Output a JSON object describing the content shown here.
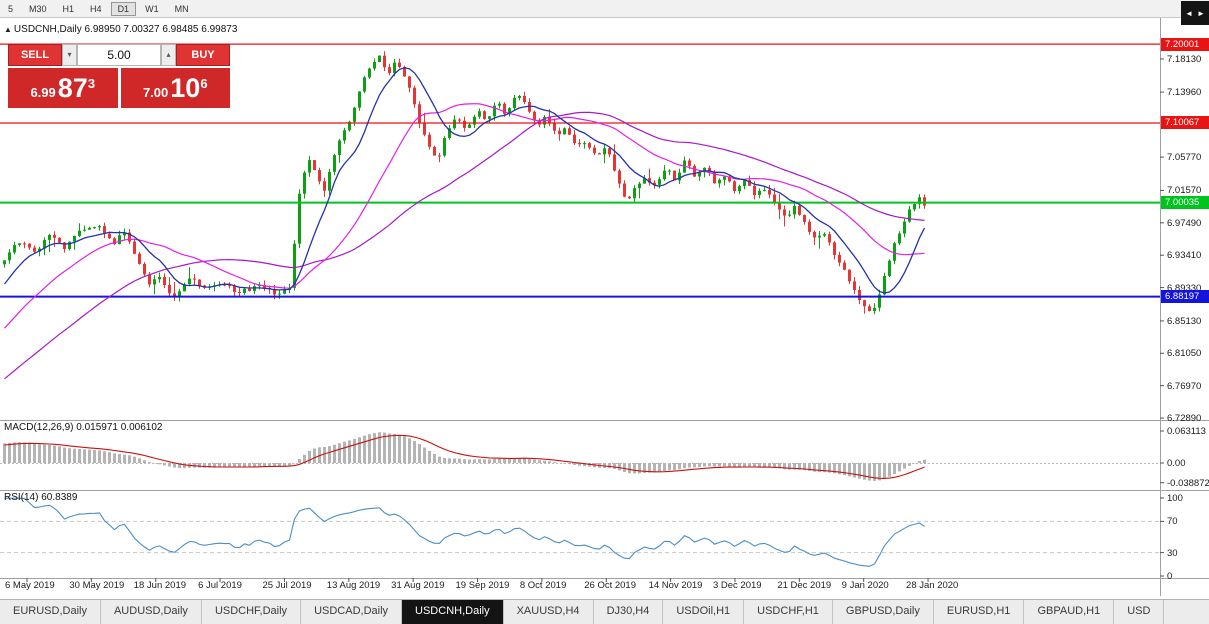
{
  "toolbar": {
    "timeframes": [
      "5",
      "M30",
      "H1",
      "H4",
      "D1",
      "W1",
      "MN"
    ],
    "active": "D1"
  },
  "chart_header": {
    "collapse_arrow": "▲",
    "title": "USDCNH,Daily 6.98950 7.00327 6.98485 6.99873"
  },
  "trade_panel": {
    "sell_label": "SELL",
    "buy_label": "BUY",
    "volume": "5.00",
    "spinner_down": "▾",
    "spinner_up": "▴",
    "sell_price": {
      "prefix": "6.99",
      "main": "87",
      "sup": "3"
    },
    "buy_price": {
      "prefix": "7.00",
      "main": "10",
      "sup": "6"
    }
  },
  "price_axis": {
    "labels": [
      {
        "text": "7.18130",
        "value": 7.1813
      },
      {
        "text": "7.13960",
        "value": 7.1396
      },
      {
        "text": "7.05770",
        "value": 7.0577
      },
      {
        "text": "7.01570",
        "value": 7.0157
      },
      {
        "text": "6.97490",
        "value": 6.9749
      },
      {
        "text": "6.93410",
        "value": 6.9341
      },
      {
        "text": "6.89330",
        "value": 6.8933
      },
      {
        "text": "6.85130",
        "value": 6.8513
      },
      {
        "text": "6.81050",
        "value": 6.8105
      },
      {
        "text": "6.76970",
        "value": 6.7697
      },
      {
        "text": "6.72890",
        "value": 6.7289
      }
    ]
  },
  "hlines": [
    {
      "text": "7.20001",
      "value": 7.20001,
      "color": "#e81414",
      "width": 1.3
    },
    {
      "text": "7.10067",
      "value": 7.10067,
      "color": "#e81414",
      "width": 1.3
    },
    {
      "text": "7.00035",
      "value": 7.00035,
      "color": "#00c41e",
      "width": 2
    },
    {
      "text": "6.88197",
      "value": 6.88197,
      "color": "#1414dc",
      "width": 2
    }
  ],
  "macd_panel": {
    "header": "MACD(12,26,9) 0.015971 0.006102",
    "axis": [
      {
        "text": "0.063113",
        "value": 0.063113
      },
      {
        "text": "0.00",
        "value": 0
      },
      {
        "text": "-0.038872",
        "value": -0.038872
      }
    ]
  },
  "rsi_panel": {
    "header": "RSI(14) 60.8389",
    "axis": [
      {
        "text": "100",
        "value": 100
      },
      {
        "text": "70",
        "value": 70
      },
      {
        "text": "30",
        "value": 30
      },
      {
        "text": "0",
        "value": 0
      }
    ],
    "levels": [
      70,
      30
    ]
  },
  "date_axis": [
    "6 May 2019",
    "30 May 2019",
    "18 Jun 2019",
    "6 Jul 2019",
    "25 Jul 2019",
    "13 Aug 2019",
    "31 Aug 2019",
    "19 Sep 2019",
    "8 Oct 2019",
    "26 Oct 2019",
    "14 Nov 2019",
    "3 Dec 2019",
    "21 Dec 2019",
    "9 Jan 2020",
    "28 Jan 2020"
  ],
  "tab_bar": {
    "tabs": [
      "EURUSD,Daily",
      "AUDUSD,Daily",
      "USDCHF,Daily",
      "USDCAD,Daily",
      "USDCNH,Daily",
      "XAUUSD,H4",
      "DJ30,H4",
      "USDOil,H1",
      "USDCHF,H1",
      "GBPUSD,Daily",
      "EURUSD,H1",
      "GBPAUD,H1",
      "USD"
    ],
    "active": "USDCNH,Daily",
    "scroll_left": "◄",
    "scroll_right": "►"
  },
  "chart_data": {
    "type": "candlestick",
    "symbol": "USDCNH",
    "period": "Daily",
    "ohlc_last": {
      "open": 6.9895,
      "high": 7.00327,
      "low": 6.98485,
      "close": 6.99873
    },
    "bid": 6.99873,
    "ask": 7.00106,
    "macd_last": 0.015971,
    "macd_signal_last": 0.006102,
    "rsi_last": 60.8389,
    "macd_axis_max": 0.063113,
    "macd_axis_min": -0.038872,
    "price_axis_range": {
      "top": 7.2135,
      "bottom": 6.7265
    },
    "num_candles": 185,
    "warmup_candles": 58,
    "close_keypoints": [
      [
        -0.3,
        6.67
      ],
      [
        -0.22,
        6.7
      ],
      [
        -0.15,
        6.745
      ],
      [
        -0.08,
        6.82
      ],
      [
        -0.03,
        6.885
      ],
      [
        0.0,
        6.93
      ],
      [
        0.016,
        6.952
      ],
      [
        0.032,
        6.936
      ],
      [
        0.049,
        6.958
      ],
      [
        0.065,
        6.944
      ],
      [
        0.081,
        6.962
      ],
      [
        0.103,
        6.972
      ],
      [
        0.119,
        6.95
      ],
      [
        0.13,
        6.962
      ],
      [
        0.146,
        6.928
      ],
      [
        0.157,
        6.896
      ],
      [
        0.168,
        6.91
      ],
      [
        0.184,
        6.878
      ],
      [
        0.2,
        6.906
      ],
      [
        0.216,
        6.894
      ],
      [
        0.232,
        6.9
      ],
      [
        0.254,
        6.888
      ],
      [
        0.276,
        6.894
      ],
      [
        0.297,
        6.886
      ],
      [
        0.311,
        6.893
      ],
      [
        0.319,
        7.0
      ],
      [
        0.33,
        7.06
      ],
      [
        0.34,
        7.036
      ],
      [
        0.348,
        7.012
      ],
      [
        0.357,
        7.058
      ],
      [
        0.368,
        7.088
      ],
      [
        0.378,
        7.108
      ],
      [
        0.389,
        7.155
      ],
      [
        0.4,
        7.172
      ],
      [
        0.409,
        7.188
      ],
      [
        0.416,
        7.163
      ],
      [
        0.427,
        7.178
      ],
      [
        0.438,
        7.152
      ],
      [
        0.449,
        7.108
      ],
      [
        0.459,
        7.078
      ],
      [
        0.47,
        7.052
      ],
      [
        0.481,
        7.088
      ],
      [
        0.492,
        7.108
      ],
      [
        0.503,
        7.093
      ],
      [
        0.514,
        7.118
      ],
      [
        0.524,
        7.103
      ],
      [
        0.535,
        7.128
      ],
      [
        0.546,
        7.108
      ],
      [
        0.557,
        7.142
      ],
      [
        0.568,
        7.118
      ],
      [
        0.578,
        7.098
      ],
      [
        0.589,
        7.108
      ],
      [
        0.6,
        7.084
      ],
      [
        0.611,
        7.094
      ],
      [
        0.622,
        7.068
      ],
      [
        0.632,
        7.078
      ],
      [
        0.643,
        7.058
      ],
      [
        0.654,
        7.068
      ],
      [
        0.665,
        7.038
      ],
      [
        0.676,
        7.002
      ],
      [
        0.686,
        7.018
      ],
      [
        0.697,
        7.034
      ],
      [
        0.708,
        7.018
      ],
      [
        0.719,
        7.044
      ],
      [
        0.73,
        7.028
      ],
      [
        0.74,
        7.054
      ],
      [
        0.751,
        7.034
      ],
      [
        0.762,
        7.044
      ],
      [
        0.773,
        7.024
      ],
      [
        0.784,
        7.034
      ],
      [
        0.795,
        7.014
      ],
      [
        0.805,
        7.028
      ],
      [
        0.816,
        7.008
      ],
      [
        0.827,
        7.018
      ],
      [
        0.838,
        6.998
      ],
      [
        0.849,
        6.984
      ],
      [
        0.859,
        6.994
      ],
      [
        0.87,
        6.974
      ],
      [
        0.881,
        6.954
      ],
      [
        0.892,
        6.964
      ],
      [
        0.903,
        6.934
      ],
      [
        0.914,
        6.914
      ],
      [
        0.924,
        6.888
      ],
      [
        0.935,
        6.868
      ],
      [
        0.943,
        6.86
      ],
      [
        0.951,
        6.884
      ],
      [
        0.96,
        6.924
      ],
      [
        0.969,
        6.952
      ],
      [
        0.977,
        6.974
      ],
      [
        0.986,
        6.994
      ],
      [
        0.992,
        7.008
      ],
      [
        1.0,
        6.9987
      ]
    ],
    "ma_periods": {
      "fast": 9,
      "mid": 25,
      "slow": 50
    },
    "macd_params": [
      12,
      26,
      9
    ],
    "rsi_period": 14,
    "colors": {
      "up": "#0ca012",
      "down": "#e53535",
      "ma_fast": "#2233aa",
      "ma_mid": "#e520e5",
      "ma_slow": "#a818c8",
      "macd_histogram": "#b4b4b4",
      "macd_signal": "#cc1111",
      "rsi": "#4a8fc7",
      "level_line": "#c8c8c8",
      "separator": "#a0a0a0"
    }
  }
}
